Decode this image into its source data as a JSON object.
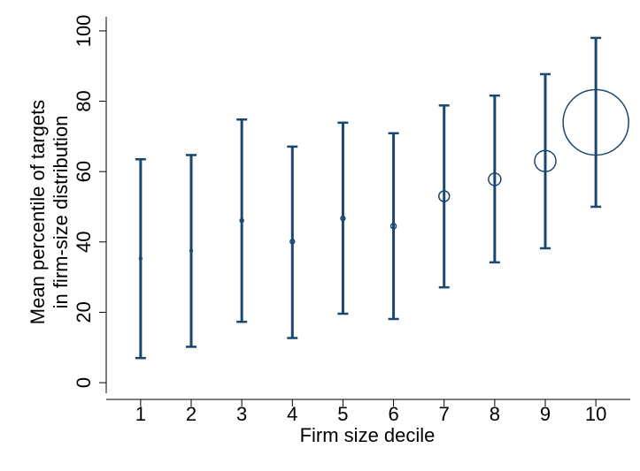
{
  "chart_data": {
    "type": "errorbar-bubble",
    "x_label": "Firm size decile",
    "y_label": [
      "Mean percentile of targets",
      "in firm-size distribution"
    ],
    "x": [
      1,
      2,
      3,
      4,
      5,
      6,
      7,
      8,
      9,
      10
    ],
    "values": [
      35.3,
      37.6,
      46.1,
      40.1,
      46.7,
      44.5,
      53,
      57.8,
      63,
      74
    ],
    "lower": [
      7,
      10.2,
      17.3,
      12.7,
      19.6,
      18.1,
      27.1,
      34.2,
      38.2,
      50
    ],
    "upper": [
      63.5,
      64.7,
      74.8,
      67.1,
      73.9,
      70.9,
      78.8,
      81.6,
      87.7,
      98
    ],
    "sizes": [
      2,
      2,
      4,
      6,
      6,
      9,
      36,
      49,
      144,
      1369
    ],
    "color": "#1a476f",
    "xlim": [
      0.32,
      10.68
    ],
    "xticks": [
      1,
      2,
      3,
      4,
      5,
      6,
      7,
      8,
      9,
      10
    ],
    "ylim": [
      -3,
      104
    ],
    "yticks": [
      0,
      20,
      40,
      60,
      80,
      100
    ]
  }
}
